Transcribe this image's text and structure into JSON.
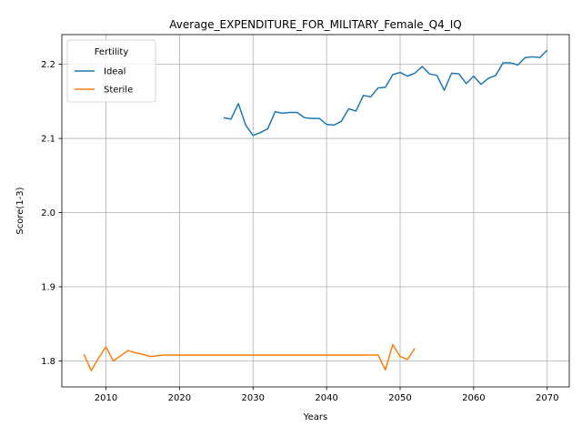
{
  "chart_data": {
    "type": "line",
    "title": "Average_EXPENDITURE_FOR_MILITARY_Female_Q4_IQ",
    "xlabel": "Years",
    "ylabel": "Score(1-3)",
    "xlim": [
      2004,
      2073
    ],
    "ylim": [
      1.765,
      2.24
    ],
    "xticks": [
      2010,
      2020,
      2030,
      2040,
      2050,
      2060,
      2070
    ],
    "yticks": [
      1.8,
      1.9,
      2.0,
      2.1,
      2.2
    ],
    "xtick_labels": [
      "2010",
      "2020",
      "2030",
      "2040",
      "2050",
      "2060",
      "2070"
    ],
    "ytick_labels": [
      "1.8",
      "1.9",
      "2.0",
      "2.1",
      "2.2"
    ],
    "grid": true,
    "legend": {
      "title": "Fertility",
      "placement": "top-left"
    },
    "series": [
      {
        "name": "Ideal",
        "color": "#1f77b4",
        "x": [
          2026,
          2027,
          2028,
          2029,
          2030,
          2031,
          2032,
          2033,
          2034,
          2035,
          2036,
          2037,
          2038,
          2039,
          2040,
          2041,
          2042,
          2043,
          2044,
          2045,
          2046,
          2047,
          2048,
          2049,
          2050,
          2051,
          2052,
          2053,
          2054,
          2055,
          2056,
          2057,
          2058,
          2059,
          2060,
          2061,
          2062,
          2063,
          2064,
          2065,
          2066,
          2067,
          2068,
          2069,
          2070
        ],
        "y": [
          2.128,
          2.126,
          2.147,
          2.118,
          2.104,
          2.108,
          2.113,
          2.136,
          2.134,
          2.135,
          2.135,
          2.128,
          2.127,
          2.127,
          2.119,
          2.118,
          2.123,
          2.14,
          2.137,
          2.158,
          2.156,
          2.168,
          2.169,
          2.186,
          2.189,
          2.184,
          2.188,
          2.197,
          2.187,
          2.185,
          2.165,
          2.188,
          2.187,
          2.174,
          2.184,
          2.173,
          2.181,
          2.185,
          2.202,
          2.202,
          2.199,
          2.209,
          2.21,
          2.209,
          2.219
        ]
      },
      {
        "name": "Sterile",
        "color": "#ff7f0e",
        "x": [
          2007,
          2008,
          2009,
          2010,
          2011,
          2012,
          2013,
          2014,
          2015,
          2016,
          2017,
          2018,
          2019,
          2020,
          2021,
          2022,
          2023,
          2024,
          2025,
          2026,
          2027,
          2028,
          2029,
          2030,
          2031,
          2032,
          2033,
          2034,
          2035,
          2036,
          2037,
          2038,
          2039,
          2040,
          2041,
          2042,
          2043,
          2044,
          2045,
          2046,
          2047,
          2048,
          2049,
          2050,
          2051,
          2052
        ],
        "y": [
          1.809,
          1.787,
          1.804,
          1.819,
          1.8,
          1.807,
          1.814,
          1.811,
          1.809,
          1.806,
          1.807,
          1.808,
          1.808,
          1.808,
          1.808,
          1.808,
          1.808,
          1.808,
          1.808,
          1.808,
          1.808,
          1.808,
          1.808,
          1.808,
          1.808,
          1.808,
          1.808,
          1.808,
          1.808,
          1.808,
          1.808,
          1.808,
          1.808,
          1.808,
          1.808,
          1.808,
          1.808,
          1.808,
          1.808,
          1.808,
          1.808,
          1.788,
          1.822,
          1.806,
          1.802,
          1.817
        ]
      }
    ]
  }
}
